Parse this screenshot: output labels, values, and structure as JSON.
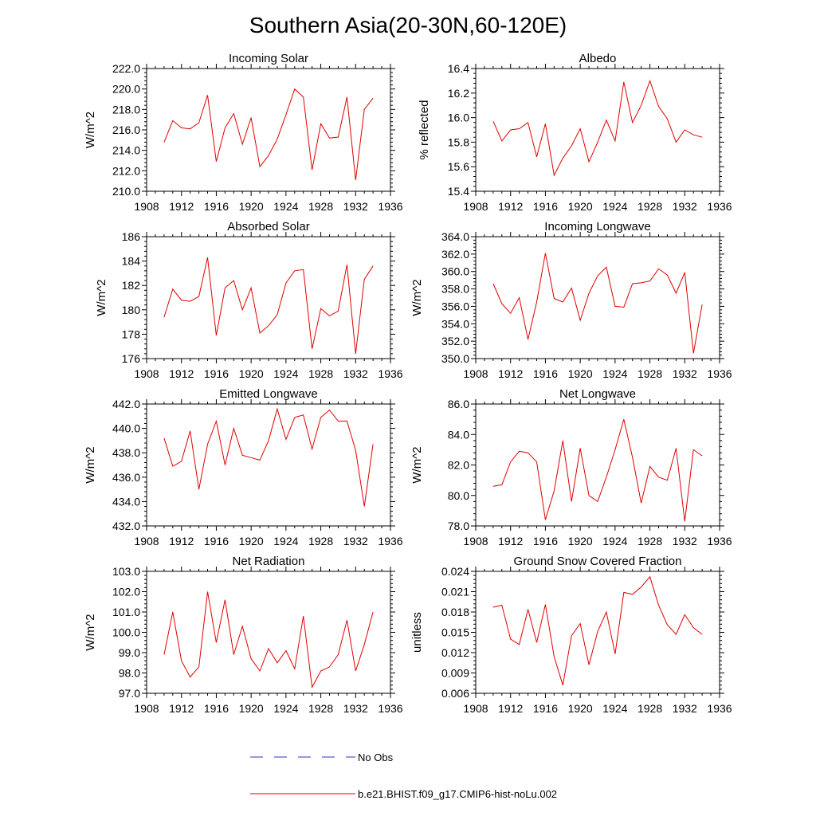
{
  "figure": {
    "title": "Southern Asia(20-30N,60-120E)"
  },
  "legend": {
    "entries": [
      {
        "label": "No Obs",
        "color": "#3030c8",
        "style": "dashed"
      },
      {
        "label": "b.e21.BHIST.f09_g17.CMIP6-hist-noLu.002",
        "color": "#e00000",
        "style": "solid"
      }
    ]
  },
  "chart_data": [
    {
      "type": "line",
      "title": "Incoming Solar",
      "ylabel": "W/m^2",
      "xlabel": "",
      "xlim": [
        1908,
        1936
      ],
      "ylim": [
        210,
        222
      ],
      "xticks": [
        "1908",
        "1912",
        "1916",
        "1920",
        "1924",
        "1928",
        "1932",
        "1936"
      ],
      "yticks": [
        "210.0",
        "212.0",
        "214.0",
        "216.0",
        "218.0",
        "220.0",
        "222.0"
      ],
      "x": [
        1910,
        1911,
        1912,
        1913,
        1914,
        1915,
        1916,
        1917,
        1918,
        1919,
        1920,
        1921,
        1922,
        1923,
        1924,
        1925,
        1926,
        1927,
        1928,
        1929,
        1930,
        1931,
        1932,
        1933,
        1934
      ],
      "series": [
        {
          "name": "b.e21.BHIST.f09_g17.CMIP6-hist-noLu.002",
          "color": "#e00000",
          "values": [
            214.8,
            216.9,
            216.2,
            216.1,
            216.7,
            219.4,
            212.9,
            216.2,
            217.6,
            214.6,
            217.2,
            212.4,
            213.5,
            215.1,
            217.5,
            220.0,
            219.2,
            212.1,
            216.6,
            215.2,
            215.3,
            219.2,
            211.1,
            218.0,
            219.1
          ]
        }
      ]
    },
    {
      "type": "line",
      "title": "Albedo",
      "ylabel": "% reflected",
      "xlabel": "",
      "xlim": [
        1908,
        1936
      ],
      "ylim": [
        15.4,
        16.4
      ],
      "xticks": [
        "1908",
        "1912",
        "1916",
        "1920",
        "1924",
        "1928",
        "1932",
        "1936"
      ],
      "yticks": [
        "15.4",
        "15.6",
        "15.8",
        "16.0",
        "16.2",
        "16.4"
      ],
      "x": [
        1910,
        1911,
        1912,
        1913,
        1914,
        1915,
        1916,
        1917,
        1918,
        1919,
        1920,
        1921,
        1922,
        1923,
        1924,
        1925,
        1926,
        1927,
        1928,
        1929,
        1930,
        1931,
        1932,
        1933,
        1934
      ],
      "series": [
        {
          "name": "b.e21.BHIST.f09_g17.CMIP6-hist-noLu.002",
          "color": "#e00000",
          "values": [
            15.97,
            15.81,
            15.9,
            15.91,
            15.96,
            15.68,
            15.95,
            15.53,
            15.67,
            15.77,
            15.91,
            15.64,
            15.8,
            15.98,
            15.81,
            16.29,
            15.96,
            16.1,
            16.3,
            16.09,
            15.99,
            15.8,
            15.9,
            15.86,
            15.84
          ]
        }
      ]
    },
    {
      "type": "line",
      "title": "Absorbed Solar",
      "ylabel": "W/m^2",
      "xlabel": "",
      "xlim": [
        1908,
        1936
      ],
      "ylim": [
        176,
        186
      ],
      "xticks": [
        "1908",
        "1912",
        "1916",
        "1920",
        "1924",
        "1928",
        "1932",
        "1936"
      ],
      "yticks": [
        "176",
        "178",
        "180",
        "182",
        "184",
        "186"
      ],
      "x": [
        1910,
        1911,
        1912,
        1913,
        1914,
        1915,
        1916,
        1917,
        1918,
        1919,
        1920,
        1921,
        1922,
        1923,
        1924,
        1925,
        1926,
        1927,
        1928,
        1929,
        1930,
        1931,
        1932,
        1933,
        1934
      ],
      "series": [
        {
          "name": "b.e21.BHIST.f09_g17.CMIP6-hist-noLu.002",
          "color": "#e00000",
          "values": [
            179.4,
            181.7,
            180.8,
            180.7,
            181.1,
            184.3,
            177.9,
            181.8,
            182.4,
            180.0,
            181.8,
            178.1,
            178.7,
            179.6,
            182.2,
            183.2,
            183.3,
            176.8,
            180.1,
            179.5,
            179.9,
            183.7,
            176.4,
            182.5,
            183.6
          ]
        }
      ]
    },
    {
      "type": "line",
      "title": "Incoming Longwave",
      "ylabel": "W/m^2",
      "xlabel": "",
      "xlim": [
        1908,
        1936
      ],
      "ylim": [
        350,
        364
      ],
      "xticks": [
        "1908",
        "1912",
        "1916",
        "1920",
        "1924",
        "1928",
        "1932",
        "1936"
      ],
      "yticks": [
        "350.0",
        "352.0",
        "354.0",
        "356.0",
        "358.0",
        "360.0",
        "362.0",
        "364.0"
      ],
      "x": [
        1910,
        1911,
        1912,
        1913,
        1914,
        1915,
        1916,
        1917,
        1918,
        1919,
        1920,
        1921,
        1922,
        1923,
        1924,
        1925,
        1926,
        1927,
        1928,
        1929,
        1930,
        1931,
        1932,
        1933,
        1934
      ],
      "series": [
        {
          "name": "b.e21.BHIST.f09_g17.CMIP6-hist-noLu.002",
          "color": "#e00000",
          "values": [
            358.6,
            356.3,
            355.2,
            357.0,
            352.2,
            356.5,
            362.1,
            356.9,
            356.5,
            358.1,
            354.4,
            357.5,
            359.5,
            360.5,
            356.0,
            355.9,
            358.6,
            358.7,
            358.9,
            360.3,
            359.6,
            357.5,
            359.9,
            350.6,
            356.2
          ]
        }
      ]
    },
    {
      "type": "line",
      "title": "Emitted Longwave",
      "ylabel": "W/m^2",
      "xlabel": "",
      "xlim": [
        1908,
        1936
      ],
      "ylim": [
        432,
        442
      ],
      "xticks": [
        "1908",
        "1912",
        "1916",
        "1920",
        "1924",
        "1928",
        "1932",
        "1936"
      ],
      "yticks": [
        "432.0",
        "434.0",
        "436.0",
        "438.0",
        "440.0",
        "442.0"
      ],
      "x": [
        1910,
        1911,
        1912,
        1913,
        1914,
        1915,
        1916,
        1917,
        1918,
        1919,
        1920,
        1921,
        1922,
        1923,
        1924,
        1925,
        1926,
        1927,
        1928,
        1929,
        1930,
        1931,
        1932,
        1933,
        1934
      ],
      "series": [
        {
          "name": "b.e21.BHIST.f09_g17.CMIP6-hist-noLu.002",
          "color": "#e00000",
          "values": [
            439.2,
            436.9,
            437.3,
            439.8,
            435.0,
            438.7,
            440.6,
            437.0,
            440.0,
            437.8,
            437.6,
            437.4,
            439.0,
            441.6,
            439.1,
            440.9,
            441.1,
            438.3,
            440.9,
            441.5,
            440.6,
            440.6,
            438.2,
            433.6,
            438.7
          ]
        }
      ]
    },
    {
      "type": "line",
      "title": "Net Longwave",
      "ylabel": "W/m^2",
      "xlabel": "",
      "xlim": [
        1908,
        1936
      ],
      "ylim": [
        78,
        86
      ],
      "xticks": [
        "1908",
        "1912",
        "1916",
        "1920",
        "1924",
        "1928",
        "1932",
        "1936"
      ],
      "yticks": [
        "78.0",
        "80.0",
        "82.0",
        "84.0",
        "86.0"
      ],
      "x": [
        1910,
        1911,
        1912,
        1913,
        1914,
        1915,
        1916,
        1917,
        1918,
        1919,
        1920,
        1921,
        1922,
        1923,
        1924,
        1925,
        1926,
        1927,
        1928,
        1929,
        1930,
        1931,
        1932,
        1933,
        1934
      ],
      "series": [
        {
          "name": "b.e21.BHIST.f09_g17.CMIP6-hist-noLu.002",
          "color": "#e00000",
          "values": [
            80.6,
            80.7,
            82.2,
            82.9,
            82.8,
            82.2,
            78.4,
            80.3,
            83.6,
            79.6,
            83.1,
            80.0,
            79.6,
            81.2,
            83.0,
            85.0,
            82.5,
            79.5,
            81.9,
            81.2,
            81.0,
            83.1,
            78.3,
            83.0,
            82.6
          ]
        }
      ]
    },
    {
      "type": "line",
      "title": "Net Radiation",
      "ylabel": "W/m^2",
      "xlabel": "",
      "xlim": [
        1908,
        1936
      ],
      "ylim": [
        97,
        103
      ],
      "xticks": [
        "1908",
        "1912",
        "1916",
        "1920",
        "1924",
        "1928",
        "1932",
        "1936"
      ],
      "yticks": [
        "97.0",
        "98.0",
        "99.0",
        "100.0",
        "101.0",
        "102.0",
        "103.0"
      ],
      "x": [
        1910,
        1911,
        1912,
        1913,
        1914,
        1915,
        1916,
        1917,
        1918,
        1919,
        1920,
        1921,
        1922,
        1923,
        1924,
        1925,
        1926,
        1927,
        1928,
        1929,
        1930,
        1931,
        1932,
        1933,
        1934
      ],
      "series": [
        {
          "name": "b.e21.BHIST.f09_g17.CMIP6-hist-noLu.002",
          "color": "#e00000",
          "values": [
            98.9,
            101.0,
            98.6,
            97.8,
            98.3,
            102.0,
            99.5,
            101.6,
            98.9,
            100.3,
            98.7,
            98.1,
            99.2,
            98.5,
            99.1,
            98.2,
            100.8,
            97.3,
            98.1,
            98.3,
            98.9,
            100.6,
            98.1,
            99.4,
            101.0
          ]
        }
      ]
    },
    {
      "type": "line",
      "title": "Ground Snow Covered Fraction",
      "ylabel": "unitless",
      "xlabel": "",
      "xlim": [
        1908,
        1936
      ],
      "ylim": [
        0.006,
        0.024
      ],
      "xticks": [
        "1908",
        "1912",
        "1916",
        "1920",
        "1924",
        "1928",
        "1932",
        "1936"
      ],
      "yticks": [
        "0.006",
        "0.009",
        "0.012",
        "0.015",
        "0.018",
        "0.021",
        "0.024"
      ],
      "x": [
        1910,
        1911,
        1912,
        1913,
        1914,
        1915,
        1916,
        1917,
        1918,
        1919,
        1920,
        1921,
        1922,
        1923,
        1924,
        1925,
        1926,
        1927,
        1928,
        1929,
        1930,
        1931,
        1932,
        1933,
        1934
      ],
      "series": [
        {
          "name": "b.e21.BHIST.f09_g17.CMIP6-hist-noLu.002",
          "color": "#e00000",
          "values": [
            0.0187,
            0.019,
            0.014,
            0.0132,
            0.0184,
            0.0135,
            0.0191,
            0.0114,
            0.0072,
            0.0145,
            0.0163,
            0.0102,
            0.0151,
            0.018,
            0.0118,
            0.0209,
            0.0206,
            0.0217,
            0.0232,
            0.019,
            0.0161,
            0.0147,
            0.0176,
            0.0157,
            0.0147
          ]
        }
      ]
    }
  ]
}
